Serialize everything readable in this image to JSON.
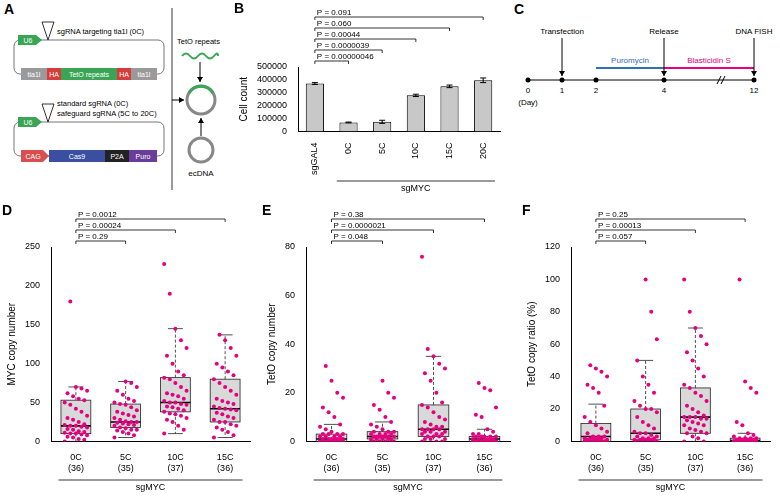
{
  "diagrams": {
    "A": {
      "panel": "A",
      "construct_1": {
        "promoter": "U6",
        "inserts": [
          "sgRNA targeting tia1l (0C)"
        ],
        "elements": [
          "tia1l",
          "HA",
          "TetO repeats",
          "HA",
          "tia1l"
        ]
      },
      "construct_2": {
        "promoter": "U6",
        "inserts": [
          "standard sgRNA (0C)",
          "safeguard sgRNA (5C to 20C)"
        ],
        "elements": [
          "CAG",
          "Cas9",
          "P2A",
          "Puro"
        ]
      },
      "products": {
        "insert": "TetO repeats",
        "circle": "ecDNA"
      }
    },
    "C": {
      "panel": "C",
      "day_label": "(Day)",
      "days": [
        0,
        1,
        2,
        4,
        12
      ],
      "events": [
        {
          "label": "Transfection",
          "day": 1
        },
        {
          "label": "Release",
          "day": 4
        },
        {
          "label": "DNA FISH",
          "day": 12
        }
      ],
      "treatments": [
        {
          "label": "Puromycin",
          "from": 2,
          "to": 4,
          "color": "#2f6fb5"
        },
        {
          "label": "Blasticidin S",
          "from": 4,
          "to": 12,
          "color": "#e4007f"
        }
      ]
    }
  },
  "chart_data": [
    {
      "panel": "B",
      "type": "bar",
      "categories": [
        "sgGAL4",
        "0C",
        "5C",
        "10C",
        "15C",
        "20C"
      ],
      "values": [
        372000,
        70000,
        75000,
        280000,
        350000,
        397000
      ],
      "errors": [
        7000,
        3000,
        12000,
        9000,
        10000,
        18000
      ],
      "color": "#c8c8c8",
      "ylabel": "Cell count",
      "ylim": [
        0,
        500000
      ],
      "yticks": [
        0,
        100000,
        200000,
        300000,
        400000,
        500000
      ],
      "grid": false,
      "group": {
        "label": "sgMYC",
        "from": "0C",
        "to": "20C"
      },
      "comparisons": [
        {
          "from": "sgGAL4",
          "to": "0C",
          "label": "P = 0.00000046"
        },
        {
          "from": "sgGAL4",
          "to": "5C",
          "label": "P = 0.0000039"
        },
        {
          "from": "sgGAL4",
          "to": "10C",
          "label": "P = 0.00044"
        },
        {
          "from": "sgGAL4",
          "to": "15C",
          "label": "P = 0.060"
        },
        {
          "from": "sgGAL4",
          "to": "20C",
          "label": "P = 0.091"
        }
      ]
    },
    {
      "panel": "D",
      "type": "box",
      "categories": [
        "0C",
        "5C",
        "10C",
        "15C"
      ],
      "group_sizes": [
        "(36)",
        "(35)",
        "(37)",
        "(36)"
      ],
      "color": "#e4007f",
      "ylabel": "MYC copy number",
      "ylim": [
        0,
        250
      ],
      "yticks": [
        0,
        50,
        100,
        150,
        200,
        250
      ],
      "grid": false,
      "group": {
        "label": "sgMYC",
        "from": "0C",
        "to": "15C"
      },
      "boxes": [
        {
          "min": 0,
          "q1": 10,
          "median": 20,
          "q3": 53,
          "max": 70
        },
        {
          "min": 5,
          "q1": 18,
          "median": 25,
          "q3": 48,
          "max": 77
        },
        {
          "min": 10,
          "q1": 38,
          "median": 50,
          "q3": 82,
          "max": 145
        },
        {
          "min": 5,
          "q1": 25,
          "median": 42,
          "q3": 80,
          "max": 137
        }
      ],
      "points": [
        [
          0,
          2,
          3,
          5,
          6,
          8,
          9,
          10,
          10,
          11,
          12,
          13,
          15,
          16,
          18,
          19,
          20,
          20,
          21,
          22,
          25,
          28,
          30,
          33,
          38,
          42,
          47,
          50,
          53,
          55,
          58,
          62,
          65,
          68,
          70,
          180
        ],
        [
          5,
          8,
          10,
          12,
          14,
          15,
          15,
          17,
          18,
          20,
          21,
          22,
          23,
          24,
          25,
          25,
          26,
          28,
          30,
          32,
          34,
          36,
          38,
          40,
          44,
          47,
          48,
          50,
          52,
          55,
          60,
          65,
          70,
          75,
          77
        ],
        [
          10,
          15,
          20,
          25,
          28,
          30,
          33,
          35,
          36,
          38,
          40,
          42,
          44,
          45,
          47,
          48,
          50,
          50,
          52,
          55,
          58,
          60,
          62,
          65,
          70,
          75,
          80,
          82,
          85,
          90,
          100,
          110,
          120,
          130,
          145,
          190,
          228
        ],
        [
          5,
          8,
          12,
          15,
          18,
          20,
          22,
          25,
          25,
          28,
          30,
          32,
          35,
          37,
          40,
          41,
          42,
          43,
          45,
          48,
          50,
          52,
          55,
          60,
          65,
          70,
          75,
          80,
          85,
          90,
          95,
          100,
          110,
          120,
          130,
          137
        ]
      ],
      "comparisons": [
        {
          "from": "0C",
          "to": "5C",
          "label": "P = 0.29"
        },
        {
          "from": "0C",
          "to": "10C",
          "label": "P = 0.00024"
        },
        {
          "from": "0C",
          "to": "15C",
          "label": "P = 0.0012"
        }
      ]
    },
    {
      "panel": "E",
      "type": "box",
      "categories": [
        "0C",
        "5C",
        "10C",
        "15C"
      ],
      "group_sizes": [
        "(36)",
        "(35)",
        "(37)",
        "(36)"
      ],
      "color": "#e4007f",
      "ylabel": "TetO copy number",
      "ylim": [
        0,
        80
      ],
      "yticks": [
        0,
        20,
        40,
        60,
        80
      ],
      "grid": false,
      "group": {
        "label": "sgMYC",
        "from": "0C",
        "to": "15C"
      },
      "boxes": [
        {
          "min": 0,
          "q1": 0,
          "median": 1,
          "q3": 3,
          "max": 7
        },
        {
          "min": 0,
          "q1": 1,
          "median": 2,
          "q3": 4,
          "max": 8
        },
        {
          "min": 0,
          "q1": 2,
          "median": 5,
          "q3": 15,
          "max": 35
        },
        {
          "min": 0,
          "q1": 0,
          "median": 1,
          "q3": 2,
          "max": 5
        }
      ],
      "points": [
        [
          0,
          0,
          0,
          0,
          0,
          0,
          0,
          0,
          0,
          0,
          1,
          1,
          1,
          1,
          1,
          1,
          1,
          2,
          2,
          2,
          2,
          3,
          3,
          3,
          3,
          4,
          5,
          6,
          7,
          10,
          12,
          14,
          18,
          20,
          25,
          31
        ],
        [
          0,
          0,
          0,
          0,
          0,
          0,
          1,
          1,
          1,
          1,
          1,
          2,
          2,
          2,
          2,
          2,
          2,
          2,
          3,
          3,
          3,
          3,
          4,
          4,
          4,
          5,
          6,
          7,
          8,
          10,
          13,
          15,
          18,
          20,
          25
        ],
        [
          0,
          0,
          0,
          1,
          1,
          1,
          2,
          2,
          2,
          3,
          3,
          3,
          4,
          4,
          4,
          5,
          5,
          5,
          5,
          6,
          6,
          7,
          8,
          9,
          10,
          12,
          14,
          15,
          16,
          20,
          25,
          28,
          30,
          32,
          35,
          38,
          76
        ],
        [
          0,
          0,
          0,
          0,
          0,
          0,
          0,
          0,
          0,
          0,
          0,
          0,
          0,
          0,
          0,
          1,
          1,
          1,
          1,
          1,
          1,
          2,
          2,
          2,
          2,
          2,
          3,
          3,
          4,
          5,
          10,
          11,
          14,
          21,
          22,
          24
        ]
      ],
      "comparisons": [
        {
          "from": "0C",
          "to": "5C",
          "label": "P = 0.048"
        },
        {
          "from": "0C",
          "to": "10C",
          "label": "P = 0.0000021"
        },
        {
          "from": "0C",
          "to": "15C",
          "label": "P = 0.38"
        }
      ]
    },
    {
      "panel": "F",
      "type": "box",
      "categories": [
        "0C",
        "5C",
        "10C",
        "15C"
      ],
      "group_sizes": [
        "(36)",
        "(35)",
        "(37)",
        "(36)"
      ],
      "color": "#e4007f",
      "ylabel": "TetO copy ratio (%)",
      "ylim": [
        0,
        120
      ],
      "yticks": [
        0,
        20,
        40,
        60,
        80,
        100,
        120
      ],
      "grid": false,
      "group": {
        "label": "sgMYC",
        "from": "0C",
        "to": "15C"
      },
      "boxes": [
        {
          "min": 0,
          "q1": 0,
          "median": 3,
          "q3": 11,
          "max": 23
        },
        {
          "min": 0,
          "q1": 1,
          "median": 5,
          "q3": 20,
          "max": 50
        },
        {
          "min": 0,
          "q1": 5,
          "median": 15,
          "q3": 33,
          "max": 70
        },
        {
          "min": 0,
          "q1": 0,
          "median": 0.5,
          "q3": 2,
          "max": 5
        }
      ],
      "points": [
        [
          0,
          0,
          0,
          0,
          0,
          0,
          0,
          0,
          0,
          0,
          0,
          1,
          1,
          1,
          1,
          2,
          2,
          2,
          2,
          3,
          3,
          3,
          5,
          6,
          8,
          10,
          12,
          15,
          22,
          30,
          33,
          35,
          40,
          43,
          45,
          47
        ],
        [
          0,
          0,
          0,
          0,
          0,
          0,
          1,
          1,
          1,
          1,
          2,
          2,
          2,
          3,
          3,
          4,
          5,
          5,
          6,
          8,
          10,
          12,
          15,
          18,
          20,
          20,
          22,
          25,
          30,
          35,
          40,
          50,
          63,
          80,
          100
        ],
        [
          0,
          0,
          2,
          3,
          5,
          5,
          6,
          7,
          8,
          10,
          10,
          11,
          12,
          13,
          14,
          14,
          15,
          15,
          15,
          16,
          18,
          20,
          22,
          25,
          28,
          30,
          33,
          35,
          40,
          45,
          50,
          55,
          60,
          65,
          70,
          80,
          100
        ],
        [
          0,
          0,
          0,
          0,
          0,
          0,
          0,
          0,
          0,
          0,
          0,
          0,
          0,
          0,
          0,
          0,
          0,
          0,
          0,
          1,
          1,
          1,
          1,
          2,
          2,
          2,
          2,
          3,
          4,
          5,
          10,
          12,
          30,
          33,
          37,
          100
        ]
      ],
      "comparisons": [
        {
          "from": "0C",
          "to": "5C",
          "label": "P = 0.057"
        },
        {
          "from": "0C",
          "to": "10C",
          "label": "P = 0.00013"
        },
        {
          "from": "0C",
          "to": "15C",
          "label": "P = 0.25"
        }
      ]
    }
  ]
}
